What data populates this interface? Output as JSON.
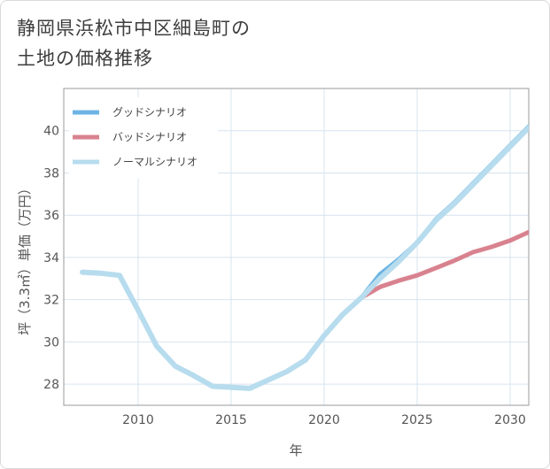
{
  "title": {
    "line1": "静岡県浜松市中区細島町の",
    "line2": "土地の価格推移"
  },
  "chart_data": {
    "type": "line",
    "title": "静岡県浜松市中区細島町の土地の価格推移",
    "xlabel": "年",
    "ylabel": "坪（3.3㎡）単価（万円）",
    "xlim": [
      2006,
      2031
    ],
    "ylim": [
      27,
      42
    ],
    "xticks": [
      2010,
      2015,
      2020,
      2025,
      2030
    ],
    "yticks": [
      28,
      30,
      32,
      34,
      36,
      38,
      40
    ],
    "grid": true,
    "legend_position": "top-left",
    "series": [
      {
        "name": "グッドシナリオ",
        "color": "#6cb4e4",
        "x": [
          2022,
          2023,
          2024,
          2025,
          2026,
          2027,
          2028,
          2029,
          2030,
          2031
        ],
        "y": [
          32.1,
          33.2,
          33.9,
          34.7,
          35.8,
          36.6,
          37.5,
          38.4,
          39.3,
          40.2
        ]
      },
      {
        "name": "バッドシナリオ",
        "color": "#d9828f",
        "x": [
          2022,
          2023,
          2024,
          2025,
          2026,
          2027,
          2028,
          2029,
          2030,
          2031
        ],
        "y": [
          32.1,
          32.6,
          32.9,
          33.15,
          33.5,
          33.85,
          34.25,
          34.5,
          34.8,
          35.2
        ]
      },
      {
        "name": "ノーマルシナリオ",
        "color": "#b7dcee",
        "x": [
          2007,
          2008,
          2009,
          2010,
          2011,
          2012,
          2013,
          2014,
          2015,
          2016,
          2017,
          2018,
          2019,
          2020,
          2021,
          2022,
          2023,
          2024,
          2025,
          2026,
          2027,
          2028,
          2029,
          2030,
          2031
        ],
        "y": [
          33.3,
          33.25,
          33.15,
          31.5,
          29.8,
          28.85,
          28.4,
          27.9,
          27.85,
          27.8,
          28.2,
          28.6,
          29.15,
          30.3,
          31.3,
          32.1,
          33.0,
          33.8,
          34.7,
          35.75,
          36.55,
          37.45,
          38.35,
          39.25,
          40.15
        ]
      }
    ]
  }
}
